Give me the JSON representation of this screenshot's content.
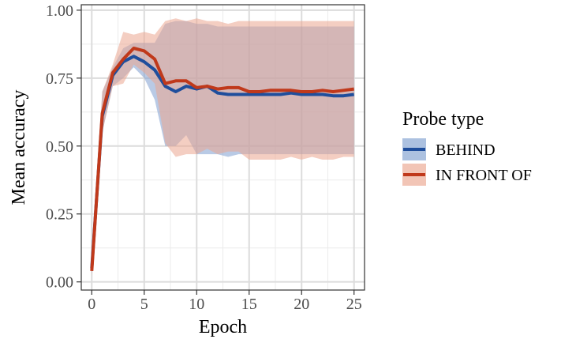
{
  "chart_data": {
    "type": "line",
    "xlabel": "Epoch",
    "ylabel": "Mean accuracy",
    "xlim": [
      -1,
      26
    ],
    "ylim": [
      -0.03,
      1.02
    ],
    "x_ticks": [
      0,
      5,
      10,
      15,
      20,
      25
    ],
    "x_tick_labels": [
      "0",
      "5",
      "10",
      "15",
      "20",
      "25"
    ],
    "y_ticks": [
      0,
      0.25,
      0.5,
      0.75,
      1.0
    ],
    "y_tick_labels": [
      "0.00",
      "0.25",
      "0.50",
      "0.75",
      "1.00"
    ],
    "grid": true,
    "legend": {
      "title": "Probe type",
      "position": "right"
    },
    "x": [
      0,
      1,
      2,
      3,
      4,
      5,
      6,
      7,
      8,
      9,
      10,
      11,
      12,
      13,
      14,
      15,
      16,
      17,
      18,
      19,
      20,
      21,
      22,
      23,
      24,
      25
    ],
    "series": [
      {
        "name": "BEHIND",
        "color": "#1f4e9c",
        "fill": "#7f9fd0",
        "values": [
          0.05,
          0.61,
          0.76,
          0.81,
          0.83,
          0.81,
          0.78,
          0.72,
          0.7,
          0.72,
          0.71,
          0.72,
          0.695,
          0.69,
          0.69,
          0.69,
          0.69,
          0.69,
          0.69,
          0.695,
          0.69,
          0.69,
          0.69,
          0.685,
          0.685,
          0.69
        ],
        "upper": [
          0.07,
          0.7,
          0.79,
          0.86,
          0.88,
          0.88,
          0.88,
          0.95,
          0.96,
          0.96,
          0.95,
          0.95,
          0.94,
          0.94,
          0.94,
          0.94,
          0.94,
          0.94,
          0.94,
          0.94,
          0.94,
          0.94,
          0.94,
          0.94,
          0.94,
          0.94
        ],
        "lower": [
          0.03,
          0.55,
          0.72,
          0.75,
          0.79,
          0.75,
          0.67,
          0.5,
          0.5,
          0.54,
          0.47,
          0.47,
          0.47,
          0.46,
          0.47,
          0.47,
          0.47,
          0.47,
          0.47,
          0.47,
          0.47,
          0.47,
          0.47,
          0.47,
          0.47,
          0.47
        ]
      },
      {
        "name": "IN FRONT OF",
        "color": "#c0391b",
        "fill": "#eba68f",
        "values": [
          0.04,
          0.62,
          0.77,
          0.82,
          0.86,
          0.85,
          0.82,
          0.73,
          0.74,
          0.74,
          0.715,
          0.72,
          0.71,
          0.715,
          0.715,
          0.7,
          0.7,
          0.705,
          0.705,
          0.705,
          0.7,
          0.7,
          0.705,
          0.7,
          0.705,
          0.71
        ],
        "upper": [
          0.06,
          0.7,
          0.8,
          0.92,
          0.91,
          0.92,
          0.91,
          0.96,
          0.97,
          0.96,
          0.97,
          0.96,
          0.96,
          0.95,
          0.96,
          0.96,
          0.96,
          0.96,
          0.96,
          0.96,
          0.96,
          0.96,
          0.96,
          0.96,
          0.96,
          0.96
        ],
        "lower": [
          0.02,
          0.55,
          0.72,
          0.73,
          0.8,
          0.77,
          0.73,
          0.51,
          0.46,
          0.47,
          0.47,
          0.49,
          0.47,
          0.48,
          0.48,
          0.45,
          0.45,
          0.45,
          0.45,
          0.46,
          0.45,
          0.46,
          0.45,
          0.45,
          0.46,
          0.46
        ]
      }
    ]
  }
}
